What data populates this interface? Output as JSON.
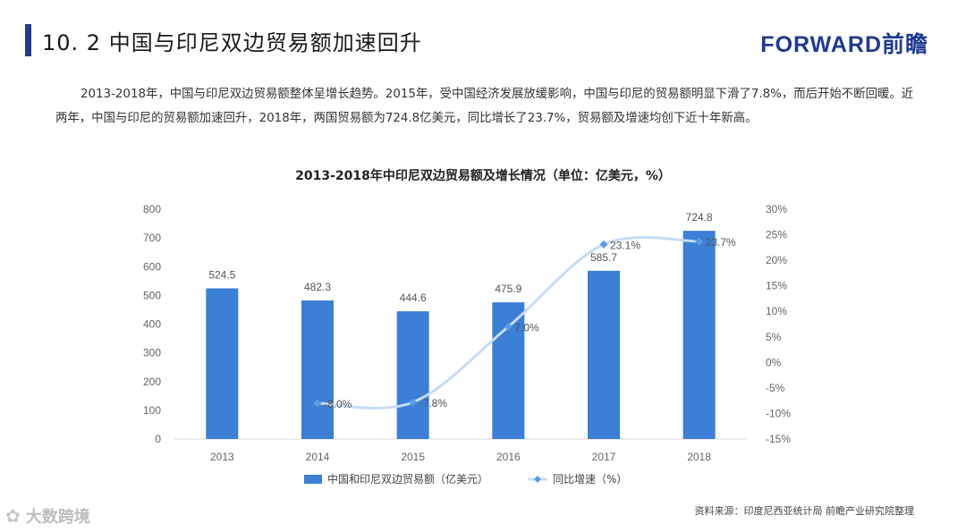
{
  "header": {
    "section_title": "10. 2  中国与印尼双边贸易额加速回升",
    "logo_text": "FORWARD前瞻"
  },
  "intro_text": "2013-2018年，中国与印尼双边贸易额整体呈增长趋势。2015年，受中国经济发展放缓影响，中国与印尼的贸易额明显下滑了7.8%，而后开始不断回暖。近两年，中国与印尼的贸易额加速回升，2018年，两国贸易额为724.8亿美元，同比增长了23.7%，贸易额及增速均创下近十年新高。",
  "source_text": "资料来源：印度尼西亚统计局  前瞻产业研究院整理",
  "watermark_text": "大数跨境",
  "colors": {
    "accent": "#1f3a93",
    "bar": "#3b7fd6",
    "line": "#c6dcf5",
    "line_marker": "#5b9be6"
  },
  "chart_data": {
    "type": "bar",
    "title": "2013-2018年中印尼双边贸易额及增长情况（单位：亿美元，%）",
    "categories": [
      "2013",
      "2014",
      "2015",
      "2016",
      "2017",
      "2018"
    ],
    "series": [
      {
        "name": "中国和印尼双边贸易额（亿美元）",
        "type": "bar",
        "axis": "left",
        "values": [
          524.5,
          482.3,
          444.6,
          475.9,
          585.7,
          724.8
        ],
        "labels": [
          "524.5",
          "482.3",
          "444.6",
          "475.9",
          "585.7",
          "724.8"
        ]
      },
      {
        "name": "同比增速（%）",
        "type": "line",
        "axis": "right",
        "values": [
          null,
          -8.0,
          -7.8,
          7.0,
          23.1,
          23.7
        ],
        "labels": [
          "",
          "-8.0%",
          "-7.8%",
          "7.0%",
          "23.1%",
          "23.7%"
        ]
      }
    ],
    "y_left": {
      "ylim": [
        0,
        800
      ],
      "ticks": [
        "0",
        "100",
        "200",
        "300",
        "400",
        "500",
        "600",
        "700",
        "800"
      ]
    },
    "y_right": {
      "ylim": [
        -15,
        30
      ],
      "ticks": [
        "-15%",
        "-10%",
        "-5%",
        "0%",
        "5%",
        "10%",
        "15%",
        "20%",
        "25%",
        "30%"
      ]
    },
    "legend_position": "bottom",
    "grid": false
  }
}
